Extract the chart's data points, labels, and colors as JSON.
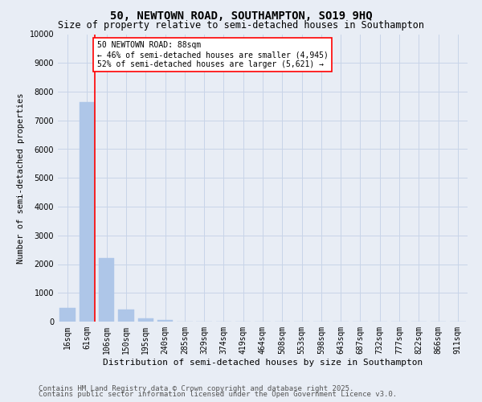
{
  "title_line1": "50, NEWTOWN ROAD, SOUTHAMPTON, SO19 9HQ",
  "title_line2": "Size of property relative to semi-detached houses in Southampton",
  "xlabel": "Distribution of semi-detached houses by size in Southampton",
  "ylabel": "Number of semi-detached properties",
  "categories": [
    "16sqm",
    "61sqm",
    "106sqm",
    "150sqm",
    "195sqm",
    "240sqm",
    "285sqm",
    "329sqm",
    "374sqm",
    "419sqm",
    "464sqm",
    "508sqm",
    "553sqm",
    "598sqm",
    "643sqm",
    "687sqm",
    "732sqm",
    "777sqm",
    "822sqm",
    "866sqm",
    "911sqm"
  ],
  "values": [
    480,
    7650,
    2200,
    430,
    120,
    55,
    0,
    0,
    0,
    0,
    0,
    0,
    0,
    0,
    0,
    0,
    0,
    0,
    0,
    0,
    0
  ],
  "bar_color": "#aec6e8",
  "bar_edge_color": "#aec6e8",
  "grid_color": "#c8d4e8",
  "background_color": "#e8edf5",
  "vline_color": "red",
  "annotation_box_text": "50 NEWTOWN ROAD: 88sqm\n← 46% of semi-detached houses are smaller (4,945)\n52% of semi-detached houses are larger (5,621) →",
  "ylim": [
    0,
    10000
  ],
  "yticks": [
    0,
    1000,
    2000,
    3000,
    4000,
    5000,
    6000,
    7000,
    8000,
    9000,
    10000
  ],
  "footer_line1": "Contains HM Land Registry data © Crown copyright and database right 2025.",
  "footer_line2": "Contains public sector information licensed under the Open Government Licence v3.0.",
  "title_fontsize": 10,
  "subtitle_fontsize": 8.5,
  "ylabel_fontsize": 7.5,
  "xlabel_fontsize": 8,
  "annotation_fontsize": 7,
  "footer_fontsize": 6.5,
  "tick_fontsize": 7
}
